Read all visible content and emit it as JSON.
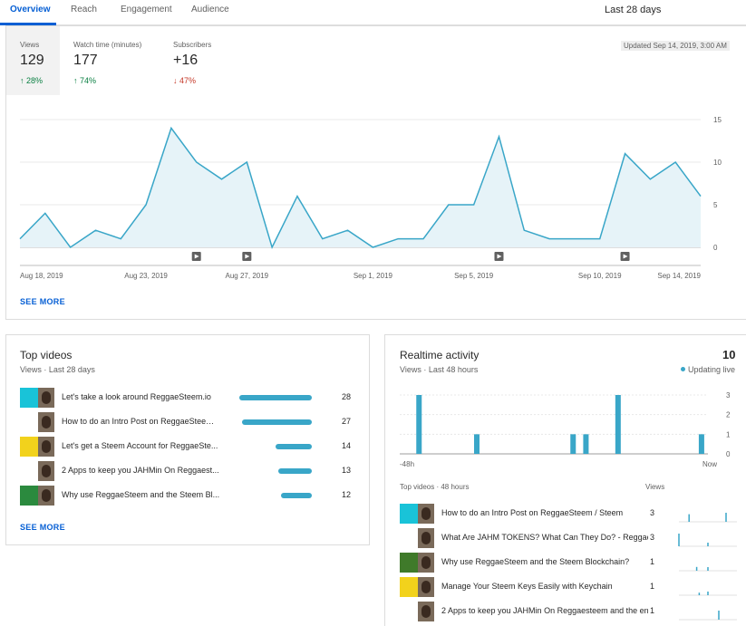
{
  "tabs": [
    {
      "label": "Overview",
      "active": true
    },
    {
      "label": "Reach",
      "active": false
    },
    {
      "label": "Engagement",
      "active": false
    },
    {
      "label": "Audience",
      "active": false
    }
  ],
  "date_range": "Last 28 days",
  "metrics": [
    {
      "label": "Views",
      "value": "129",
      "change": "28%",
      "direction": "up"
    },
    {
      "label": "Watch time (minutes)",
      "value": "177",
      "change": "74%",
      "direction": "up"
    },
    {
      "label": "Subscribers",
      "value": "+16",
      "change": "47%",
      "direction": "down"
    }
  ],
  "updated": "Updated Sep 14, 2019, 3:00 AM",
  "see_more": "SEE MORE",
  "colors": {
    "accent": "#065fd4",
    "line": "#39a6c8",
    "fill": "#e6f3f8",
    "up": "#0b8043",
    "down": "#c53929"
  },
  "chart_data": {
    "type": "area",
    "series": [
      {
        "values": [
          1,
          4,
          0,
          2,
          1,
          5,
          14,
          10,
          8,
          10,
          0,
          6,
          1,
          2,
          0,
          1,
          1,
          5,
          5,
          13,
          2,
          1,
          1,
          1,
          11,
          8,
          10,
          6
        ]
      }
    ],
    "x_labels": [
      "Aug 18, 2019",
      "Aug 23, 2019",
      "Aug 27, 2019",
      "Sep 1, 2019",
      "Sep 5, 2019",
      "Sep 10, 2019",
      "Sep 14, 2019"
    ],
    "y_ticks": [
      "0",
      "5",
      "10",
      "15"
    ],
    "ylim": [
      0,
      15
    ],
    "video_markers_at": [
      7,
      9,
      19,
      24
    ],
    "grid": true
  },
  "top_videos": {
    "title": "Top videos",
    "subtitle": "Views · Last 28 days",
    "items": [
      {
        "title": "Let's take a look around ReggaeSteem.io",
        "views": 28
      },
      {
        "title": "How to do an Intro Post on ReggaeSteem ...",
        "views": 27
      },
      {
        "title": "Let's get a Steem Account for ReggaeSte...",
        "views": 14
      },
      {
        "title": "2 Apps to keep you JAHMin On Reggaest...",
        "views": 13
      },
      {
        "title": "Why use ReggaeSteem and the Steem Bl...",
        "views": 12
      }
    ]
  },
  "realtime": {
    "title": "Realtime activity",
    "subtitle": "Views · Last 48 hours",
    "count": "10",
    "live_label": "Updating live",
    "x_start": "-48h",
    "x_end": "Now",
    "y_ticks": [
      "0",
      "1",
      "2",
      "3"
    ],
    "bars": [
      3,
      1,
      1,
      1,
      3,
      1
    ],
    "bar_positions_hour": [
      -45,
      -36,
      -21,
      -19,
      -14,
      -1
    ],
    "top_label": "Top videos · 48 hours",
    "views_label": "Views",
    "videos": [
      {
        "title": "How to do an Intro Post on ReggaeSteem / Steem",
        "views": 3
      },
      {
        "title": "What Are JAHM TOKENS? What Can They Do? - ReggaeSt",
        "views": 3
      },
      {
        "title": "Why use ReggaeSteem and the Steem Blockchain?",
        "views": 1
      },
      {
        "title": "Manage Your Steem Keys Easily with Keychain",
        "views": 1
      },
      {
        "title": "2 Apps to keep you JAHMin On Reggaesteem and the en",
        "views": 1
      }
    ]
  }
}
